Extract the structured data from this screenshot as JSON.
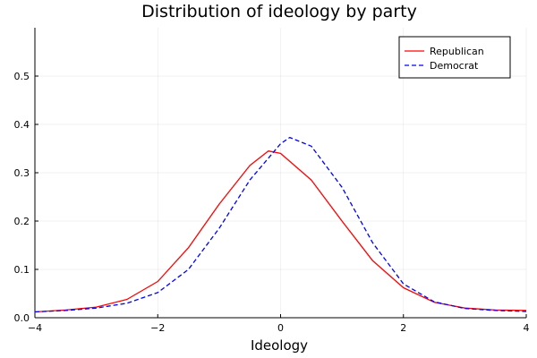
{
  "chart_data": {
    "type": "line",
    "title": "Distribution of ideology by party",
    "xlabel": "Ideology",
    "ylabel": "",
    "xlim": [
      -4,
      4
    ],
    "ylim": [
      0,
      0.6
    ],
    "xticks": [
      -4,
      -2,
      0,
      2,
      4
    ],
    "yticks": [
      0.0,
      0.1,
      0.2,
      0.3,
      0.4,
      0.5
    ],
    "xtick_labels": [
      "−4",
      "−2",
      "0",
      "2",
      "4"
    ],
    "ytick_labels": [
      "0.0",
      "0.1",
      "0.2",
      "0.3",
      "0.4",
      "0.5"
    ],
    "grid": true,
    "legend_position": "top-right",
    "series": [
      {
        "name": "Republican",
        "color": "#ff0000",
        "style": "solid",
        "x": [
          -4,
          -3.5,
          -3,
          -2.5,
          -2,
          -1.5,
          -1,
          -0.5,
          -0.2,
          0,
          0.5,
          1,
          1.5,
          2,
          2.5,
          3,
          3.5,
          4
        ],
        "y": [
          0.012,
          0.016,
          0.022,
          0.038,
          0.075,
          0.145,
          0.235,
          0.315,
          0.345,
          0.34,
          0.285,
          0.2,
          0.118,
          0.062,
          0.032,
          0.02,
          0.016,
          0.015
        ]
      },
      {
        "name": "Democrat",
        "color": "#0000ff",
        "style": "dashed",
        "x": [
          -4,
          -3.5,
          -3,
          -2.5,
          -2,
          -1.5,
          -1,
          -0.5,
          0,
          0.15,
          0.5,
          1,
          1.5,
          2,
          2.5,
          3,
          3.5,
          4
        ],
        "y": [
          0.012,
          0.015,
          0.02,
          0.03,
          0.052,
          0.1,
          0.185,
          0.285,
          0.36,
          0.373,
          0.355,
          0.27,
          0.155,
          0.07,
          0.033,
          0.019,
          0.015,
          0.013
        ]
      }
    ]
  }
}
